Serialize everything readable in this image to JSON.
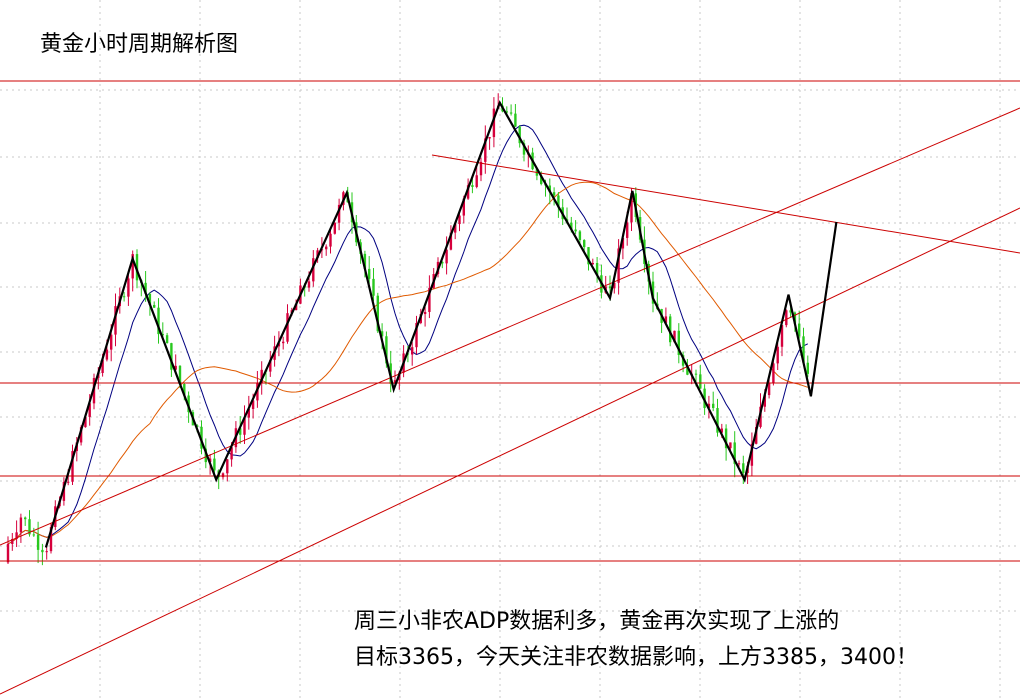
{
  "title": "黄金小时周期解析图",
  "annotation": {
    "line1": "周三小非农ADP数据利多，黄金再次实现了上涨的",
    "line2": "目标3365，今天关注非农数据影响，上方3385，3400！"
  },
  "colors": {
    "bull": "#d6003c",
    "bear": "#28c81e",
    "level": "#cc0000",
    "wave": "#000000",
    "ma_fast": "#000080",
    "ma_slow": "#e05a00",
    "grid": "#c8c8c8",
    "background": "#ffffff"
  },
  "chart_data": {
    "type": "candlestick",
    "title": "黄金小时周期解析图",
    "grid": "dotted",
    "annotations": [
      "周三小非农ADP数据利多，黄金再次实现了上涨的",
      "目标3365，今天关注非农数据影响，上方3385，3400！"
    ],
    "horizontal_levels": [
      "top",
      "upper-middle",
      "lower-middle",
      "bottom"
    ],
    "trendlines": [
      "ascending channel (two parallel lines)",
      "descending resistance line"
    ],
    "zigzag_pivots": [
      [
        0.045,
        0.222
      ],
      [
        0.13,
        0.648
      ],
      [
        0.212,
        0.322
      ],
      [
        0.34,
        0.745
      ],
      [
        0.386,
        0.455
      ],
      [
        0.49,
        0.878
      ],
      [
        0.598,
        0.59
      ],
      [
        0.62,
        0.748
      ],
      [
        0.64,
        0.59
      ],
      [
        0.73,
        0.322
      ],
      [
        0.773,
        0.595
      ],
      [
        0.795,
        0.445
      ],
      [
        0.82,
        0.702
      ]
    ],
    "moving_averages": [
      "fast (navy)",
      "slow (orange)"
    ]
  }
}
